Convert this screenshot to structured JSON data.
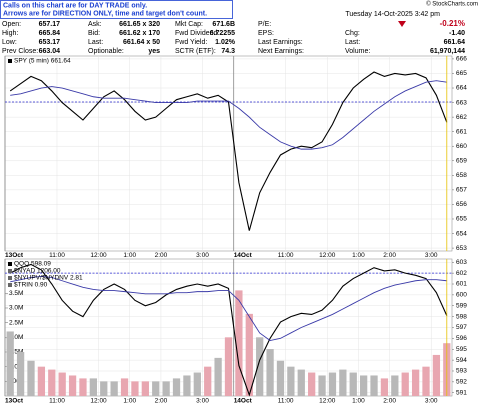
{
  "note_box": {
    "lines": [
      "Calls on this chart are for DAY TRADE only.",
      "Arrows are for DIRECTION ONLY, time and target don't count."
    ]
  },
  "watermark": "© StockCharts.com",
  "header": {
    "date": "Tuesday 14-Oct-2025 3:42 pm",
    "change_pct": "-0.21%",
    "columns": [
      [
        {
          "label": "Open:",
          "value": "657.17"
        },
        {
          "label": "High:",
          "value": "665.84"
        },
        {
          "label": "Low:",
          "value": "653.17"
        },
        {
          "label": "Prev Close:",
          "value": 663.04
        }
      ],
      [
        {
          "label": "Ask:",
          "value": "661.65 x 320"
        },
        {
          "label": "Bid:",
          "value": "661.62 x 170"
        },
        {
          "label": "Last:",
          "value": "661.64 x 50"
        },
        {
          "label": "Optionable:",
          "value": "yes"
        }
      ],
      [
        {
          "label": "Mkt Cap:",
          "value": "671.6B"
        },
        {
          "label": "Fwd Dividend:",
          "value": "6.72255"
        },
        {
          "label": "Fwd Yield:",
          "value": "1.02%"
        },
        {
          "label": "SCTR (ETF):",
          "value": "74.3"
        }
      ],
      [
        {
          "label": "P/E:"
        },
        {
          "label": "EPS:"
        },
        {
          "label": "Last Earnings:"
        },
        {
          "label": "Next Earnings:"
        }
      ],
      [
        {
          "label": "Chg:",
          "value": "-1.40"
        },
        {
          "label": "Last:",
          "value": "661.64"
        },
        {
          "label": "Volume:",
          "value": "61,970,144"
        }
      ]
    ]
  },
  "chart_data": [
    {
      "type": "line",
      "categories": [
        "13Oct",
        null,
        null,
        null,
        null,
        "11:00",
        null,
        null,
        null,
        "12:00",
        null,
        null,
        "1:00",
        null,
        null,
        "2:00",
        null,
        null,
        null,
        "3:00",
        null,
        null,
        "14Oct",
        null,
        null,
        null,
        null,
        "11:00",
        null,
        null,
        null,
        "12:00",
        null,
        null,
        "1:00",
        null,
        null,
        "2:00",
        null,
        null,
        null,
        "3:00",
        null
      ],
      "series": [
        {
          "name": "SPY (5 min) 661.64",
          "color": "#000000",
          "values": [
            663.8,
            664.3,
            664.8,
            664.5,
            663.8,
            663.0,
            662.4,
            661.8,
            662.6,
            663.4,
            663.8,
            663.2,
            662.4,
            661.8,
            662.0,
            662.6,
            663.2,
            663.4,
            663.6,
            663.3,
            663.5,
            663.04,
            657.5,
            654.2,
            656.8,
            658.2,
            659.4,
            659.8,
            660.0,
            659.9,
            660.3,
            661.5,
            663.0,
            664.0,
            664.6,
            665.1,
            664.8,
            665.0,
            664.9,
            665.0,
            664.7,
            663.5,
            661.64
          ]
        },
        {
          "color": "#3a3aa8",
          "values": [
            663.5,
            663.6,
            663.8,
            664.0,
            664.1,
            664.0,
            663.8,
            663.6,
            663.4,
            663.3,
            663.3,
            663.3,
            663.2,
            663.1,
            663.0,
            663.0,
            663.0,
            663.0,
            663.1,
            663.1,
            663.1,
            663.1,
            662.6,
            662.0,
            661.3,
            660.8,
            660.3,
            660.0,
            659.8,
            659.8,
            659.9,
            660.1,
            660.6,
            661.2,
            661.8,
            662.4,
            662.9,
            663.4,
            663.8,
            664.1,
            664.4,
            664.5,
            664.4
          ]
        }
      ],
      "ylim": [
        652.8,
        666.2
      ],
      "yticks": [
        653,
        654,
        655,
        656,
        657,
        658,
        659,
        660,
        661,
        662,
        663,
        664,
        665,
        666
      ],
      "grid": true
    },
    {
      "type": "line",
      "indicators": [
        "$NYAD 1206.00",
        "$NYUPV/$NYDNV 2.81",
        "$TRIN 0.90"
      ],
      "reference_line": 602,
      "categories": [
        "13Oct",
        null,
        null,
        null,
        null,
        "11:00",
        null,
        null,
        null,
        "12:00",
        null,
        null,
        "1:00",
        null,
        null,
        "2:00",
        null,
        null,
        null,
        "3:00",
        null,
        null,
        "14Oct",
        null,
        null,
        null,
        null,
        "11:00",
        null,
        null,
        null,
        "12:00",
        null,
        null,
        "1:00",
        null,
        null,
        "2:00",
        null,
        null,
        null,
        "3:00",
        null
      ],
      "series": [
        {
          "name": "QQQ 598.09",
          "color": "#000000",
          "values": [
            602.0,
            602.5,
            602.8,
            602.3,
            601.0,
            599.5,
            598.5,
            598.0,
            599.5,
            600.5,
            601.0,
            600.5,
            599.5,
            599.0,
            599.3,
            600.0,
            600.5,
            600.8,
            601.0,
            600.8,
            601.0,
            600.6,
            593.5,
            590.8,
            594.0,
            596.0,
            597.5,
            598.0,
            598.3,
            598.2,
            598.6,
            599.5,
            600.8,
            601.5,
            602.0,
            602.5,
            602.2,
            602.3,
            602.0,
            601.8,
            601.5,
            600.2,
            598.09
          ]
        },
        {
          "color": "#3a3aa8",
          "values": [
            601.2,
            601.4,
            601.6,
            601.7,
            601.6,
            601.3,
            601.0,
            600.7,
            600.5,
            600.4,
            600.4,
            600.3,
            600.2,
            600.1,
            600.1,
            600.1,
            600.2,
            600.2,
            600.3,
            600.3,
            600.4,
            600.4,
            599.5,
            598.0,
            596.5,
            595.8,
            596.0,
            596.5,
            597.0,
            597.4,
            597.8,
            598.2,
            598.7,
            599.2,
            599.7,
            600.2,
            600.6,
            600.9,
            601.1,
            601.3,
            601.4,
            601.4,
            601.3
          ]
        },
        {
          "type": "bar",
          "axis": "y2",
          "color": "#b8b8b8",
          "down_color": "#e8a6b0",
          "values": [
            2200000,
            1500000,
            1200000,
            1000000,
            900000,
            800000,
            700000,
            600000,
            600000,
            500000,
            500000,
            600000,
            500000,
            500000,
            500000,
            500000,
            600000,
            700000,
            800000,
            1000000,
            1300000,
            2000000,
            3600000,
            2800000,
            2000000,
            1600000,
            1200000,
            1000000,
            900000,
            800000,
            700000,
            800000,
            900000,
            800000,
            700000,
            700000,
            600000,
            700000,
            800000,
            900000,
            1000000,
            1400000,
            1800000
          ]
        }
      ],
      "ylim": [
        590.7,
        603.3
      ],
      "yticks": [
        591,
        592,
        593,
        594,
        595,
        596,
        597,
        598,
        599,
        600,
        601,
        602,
        603
      ],
      "y2lim": [
        0,
        4670000
      ],
      "y2ticks": [
        {
          "value": 500000,
          "label": "500K"
        },
        {
          "value": 1000000,
          "label": "1.0M"
        },
        {
          "value": 1500000,
          "label": "1.5M"
        },
        {
          "value": 2000000,
          "label": "2.0M"
        },
        {
          "value": 2500000,
          "label": "2.5M"
        },
        {
          "value": 3000000,
          "label": "3.0M"
        },
        {
          "value": 3500000,
          "label": "3.5M"
        }
      ],
      "grid": true
    }
  ]
}
